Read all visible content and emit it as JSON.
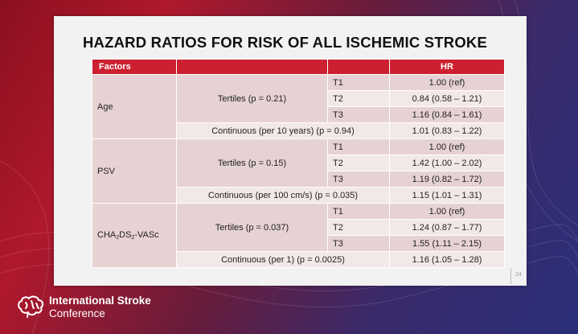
{
  "slide": {
    "title": "HAZARD RATIOS FOR RISK OF ALL ISCHEMIC STROKE",
    "page_number": "24"
  },
  "table": {
    "headers": {
      "factors": "Factors",
      "hr": "HR"
    },
    "groups": [
      {
        "factor": "Age",
        "tertiles_label": "Tertiles (p = 0.21)",
        "tertiles": [
          {
            "t": "T1",
            "hr": "1.00 (ref)"
          },
          {
            "t": "T2",
            "hr": "0.84 (0.58 – 1.21)"
          },
          {
            "t": "T3",
            "hr": "1.16 (0.84 – 1.61)"
          }
        ],
        "continuous_label": "Continuous (per 10 years) (p = 0.94)",
        "continuous_hr": "1.01 (0.83 – 1.22)"
      },
      {
        "factor": "PSV",
        "tertiles_label": "Tertiles (p = 0.15)",
        "tertiles": [
          {
            "t": "T1",
            "hr": "1.00 (ref)"
          },
          {
            "t": "T2",
            "hr": "1.42 (1.00 – 2.02)"
          },
          {
            "t": "T3",
            "hr": "1.19 (0.82 – 1.72)"
          }
        ],
        "continuous_label": "Continuous (per 100 cm/s) (p = 0.035)",
        "continuous_hr": "1.15 (1.01 – 1.31)"
      },
      {
        "factor_main": "CHA",
        "factor_sub1": "2",
        "factor_mid": "DS",
        "factor_sub2": "2",
        "factor_end": "-VASc",
        "tertiles_label": "Tertiles (p = 0.037)",
        "tertiles": [
          {
            "t": "T1",
            "hr": "1.00 (ref)"
          },
          {
            "t": "T2",
            "hr": "1.24 (0.87 – 1.77)"
          },
          {
            "t": "T3",
            "hr": "1.55 (1.11 – 2.15)"
          }
        ],
        "continuous_label": "Continuous (per 1) (p = 0.0025)",
        "continuous_hr": "1.16 (1.05 – 1.28)"
      }
    ]
  },
  "footer": {
    "logo_line1": "International Stroke",
    "logo_line2": "Conference"
  },
  "colors": {
    "header_red": "#cc1f2f",
    "row_dark": "#e6d2d2",
    "row_light": "#f3e8e8"
  },
  "icons": {
    "logo": "brain-icon"
  }
}
